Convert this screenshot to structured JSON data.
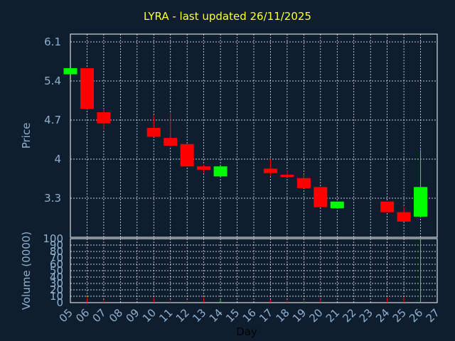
{
  "header": {
    "title": "LYRA - last updated 26/11/2025"
  },
  "colors": {
    "background": "#0f1e2e",
    "up": "#00ff00",
    "down": "#ff0000",
    "grid": "#ffffff",
    "axis_text": "#8fb0cf",
    "title": "#ffff33"
  },
  "chart_data": [
    {
      "type": "candlestick",
      "title": "LYRA - last updated 26/11/2025",
      "ylabel": "Price",
      "ylim": [
        2.6,
        6.1
      ],
      "yticks": [
        "6.1",
        "5.4",
        "4.7",
        "4",
        "3.3"
      ],
      "grid": true,
      "candles": [
        {
          "x": "05",
          "open": 5.52,
          "high": 5.63,
          "low": 5.52,
          "close": 5.63
        },
        {
          "x": "06",
          "open": 5.63,
          "high": 5.63,
          "low": 4.9,
          "close": 4.9
        },
        {
          "x": "07",
          "open": 4.84,
          "high": 4.9,
          "low": 4.54,
          "close": 4.64
        },
        {
          "x": "10",
          "open": 4.56,
          "high": 4.78,
          "low": 4.4,
          "close": 4.4
        },
        {
          "x": "11",
          "open": 4.38,
          "high": 4.83,
          "low": 4.22,
          "close": 4.24
        },
        {
          "x": "12",
          "open": 4.27,
          "high": 4.27,
          "low": 3.87,
          "close": 3.87
        },
        {
          "x": "13",
          "open": 3.87,
          "high": 3.9,
          "low": 3.75,
          "close": 3.81
        },
        {
          "x": "14",
          "open": 3.69,
          "high": 3.87,
          "low": 3.69,
          "close": 3.87
        },
        {
          "x": "17",
          "open": 3.83,
          "high": 4.0,
          "low": 3.69,
          "close": 3.75
        },
        {
          "x": "18",
          "open": 3.72,
          "high": 3.8,
          "low": 3.68,
          "close": 3.68
        },
        {
          "x": "19",
          "open": 3.66,
          "high": 3.73,
          "low": 3.48,
          "close": 3.48
        },
        {
          "x": "20",
          "open": 3.5,
          "high": 3.5,
          "low": 3.14,
          "close": 3.14
        },
        {
          "x": "21",
          "open": 3.12,
          "high": 3.24,
          "low": 3.12,
          "close": 3.24
        },
        {
          "x": "24",
          "open": 3.24,
          "high": 3.24,
          "low": 3.05,
          "close": 3.05
        },
        {
          "x": "25",
          "open": 3.05,
          "high": 3.14,
          "low": 2.88,
          "close": 2.88
        },
        {
          "x": "26",
          "open": 2.97,
          "high": 4.17,
          "low": 2.97,
          "close": 3.5
        }
      ]
    },
    {
      "type": "bar",
      "ylabel": "Volume (0000)",
      "xlabel": "Day",
      "ylim": [
        0,
        100
      ],
      "yticks": [
        "100",
        "90",
        "80",
        "70",
        "60",
        "50",
        "40",
        "30",
        "20",
        "10",
        "0"
      ],
      "grid": true,
      "categories": [
        "05",
        "06",
        "07",
        "08",
        "09",
        "10",
        "11",
        "12",
        "13",
        "14",
        "15",
        "16",
        "17",
        "18",
        "19",
        "20",
        "21",
        "22",
        "23",
        "24",
        "25",
        "26",
        "27"
      ],
      "bars": [
        {
          "x": "06",
          "value": 8,
          "direction": "down"
        },
        {
          "x": "07",
          "value": 4,
          "direction": "down"
        },
        {
          "x": "10",
          "value": 8,
          "direction": "down"
        },
        {
          "x": "11",
          "value": 3,
          "direction": "down"
        },
        {
          "x": "12",
          "value": 3,
          "direction": "down"
        },
        {
          "x": "13",
          "value": 8,
          "direction": "down"
        },
        {
          "x": "14",
          "value": 4,
          "direction": "up"
        },
        {
          "x": "17",
          "value": 4,
          "direction": "down"
        },
        {
          "x": "18",
          "value": 3,
          "direction": "down"
        },
        {
          "x": "19",
          "value": 3,
          "direction": "down"
        },
        {
          "x": "20",
          "value": 6,
          "direction": "down"
        },
        {
          "x": "24",
          "value": 8,
          "direction": "down"
        },
        {
          "x": "25",
          "value": 8,
          "direction": "down"
        },
        {
          "x": "26",
          "value": 100,
          "direction": "up"
        }
      ]
    }
  ]
}
